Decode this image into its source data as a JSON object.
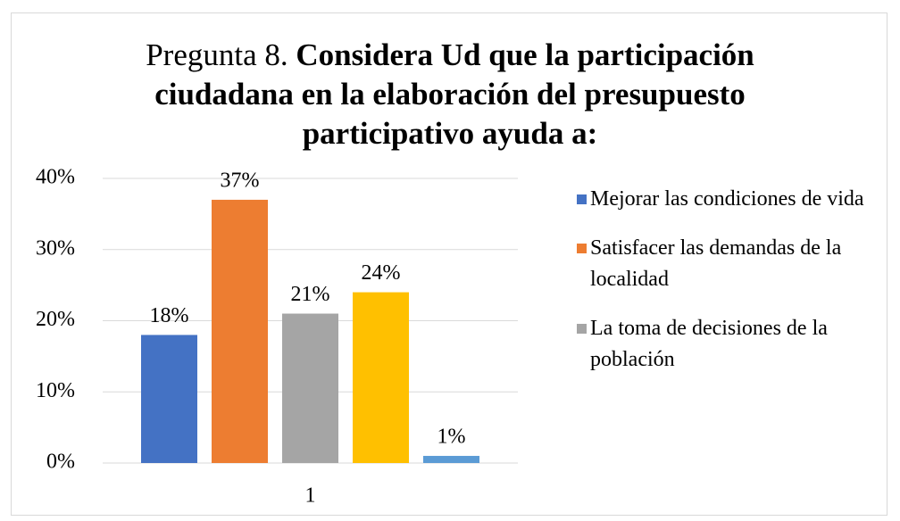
{
  "chart_data": {
    "type": "bar",
    "title_lead": "Pregunta 8.",
    "title": "Considera Ud que la participación ciudadana en la elaboración del presupuesto participativo ayuda a:",
    "categories": [
      "1"
    ],
    "series": [
      {
        "name": "Mejorar las condiciones de vida",
        "color": "#4472c4",
        "values": [
          18
        ],
        "value_labels": [
          "18%"
        ]
      },
      {
        "name": "Satisfacer las demandas de la localidad",
        "color": "#ed7d31",
        "values": [
          37
        ],
        "value_labels": [
          "37%"
        ]
      },
      {
        "name": "La toma de decisiones de la población",
        "color": "#a5a5a5",
        "values": [
          21
        ],
        "value_labels": [
          "21%"
        ]
      },
      {
        "color": "#ffc000",
        "values": [
          24
        ],
        "value_labels": [
          "24%"
        ]
      },
      {
        "color": "#5b9bd5",
        "values": [
          1
        ],
        "value_labels": [
          "1%"
        ]
      }
    ],
    "ylim": [
      0,
      40
    ],
    "yticks": [
      {
        "value": 0,
        "label": "0%"
      },
      {
        "value": 10,
        "label": "10%"
      },
      {
        "value": 20,
        "label": "20%"
      },
      {
        "value": 30,
        "label": "30%"
      },
      {
        "value": 40,
        "label": "40%"
      }
    ],
    "grid": true
  }
}
